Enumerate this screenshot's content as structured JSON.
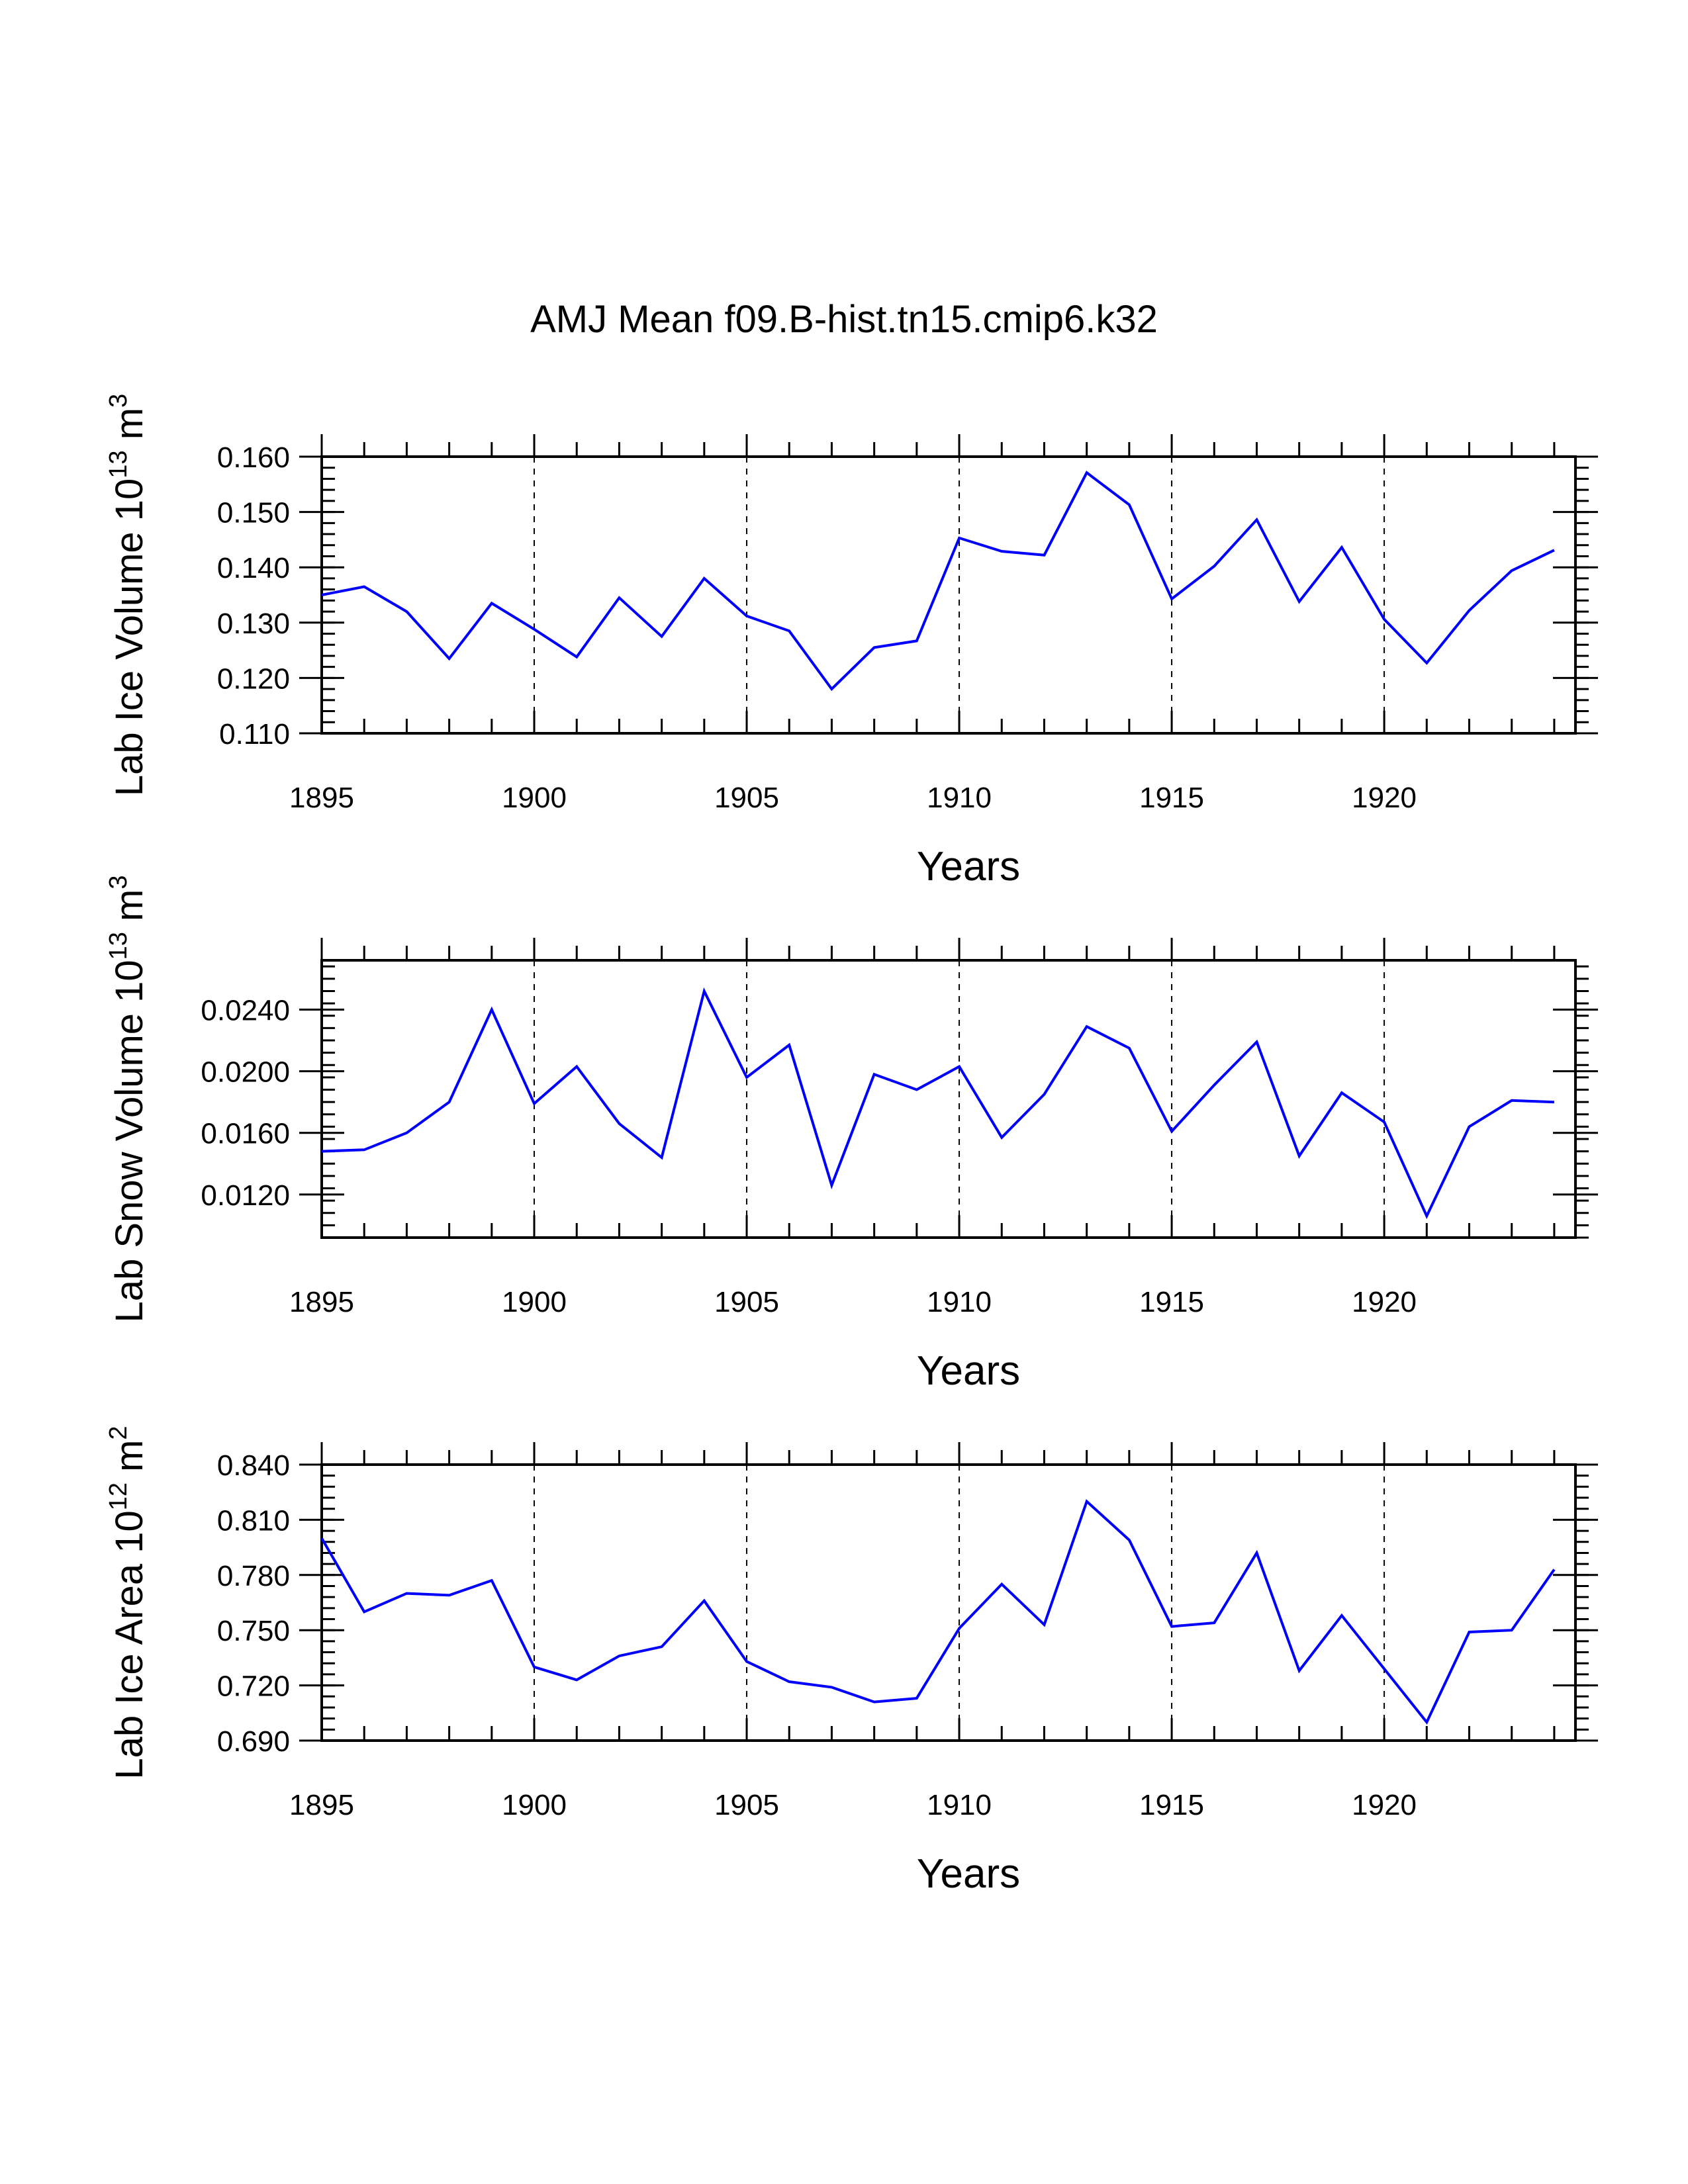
{
  "title": "AMJ Mean f09.B-hist.tn15.cmip6.k32",
  "line_color": "#0000ff",
  "chart_data": [
    {
      "type": "line",
      "xlabel": "Years",
      "ylabel": {
        "text": "Lab Ice Volume 10",
        "sup": "13",
        "unit": " m",
        "unit_sup": "3"
      },
      "x": [
        1895,
        1896,
        1897,
        1898,
        1899,
        1900,
        1901,
        1902,
        1903,
        1904,
        1905,
        1906,
        1907,
        1908,
        1909,
        1910,
        1911,
        1912,
        1913,
        1914,
        1915,
        1916,
        1917,
        1918,
        1919,
        1920,
        1921,
        1922,
        1923,
        1924
      ],
      "values": [
        0.135,
        0.1365,
        0.132,
        0.1235,
        0.1335,
        0.1288,
        0.1238,
        0.1345,
        0.1275,
        0.138,
        0.1312,
        0.1285,
        0.118,
        0.1255,
        0.1267,
        0.1453,
        0.1429,
        0.1422,
        0.1571,
        0.1513,
        0.1343,
        0.1402,
        0.1486,
        0.1338,
        0.1436,
        0.1306,
        0.1227,
        0.1322,
        0.1394,
        0.1431
      ],
      "xlim": [
        1895,
        1924.5
      ],
      "ylim": [
        0.11,
        0.16
      ],
      "xticks": [
        "1895",
        "1900",
        "1905",
        "1910",
        "1915",
        "1920"
      ],
      "yticks": [
        "0.110",
        "0.120",
        "0.130",
        "0.140",
        "0.150",
        "0.160"
      ],
      "ytick_values": [
        0.11,
        0.12,
        0.13,
        0.14,
        0.15,
        0.16
      ],
      "yminor_step": 0.002
    },
    {
      "type": "line",
      "xlabel": "Years",
      "ylabel": {
        "text": "Lab Snow Volume 10",
        "sup": "13",
        "unit": " m",
        "unit_sup": "3"
      },
      "x": [
        1895,
        1896,
        1897,
        1898,
        1899,
        1900,
        1901,
        1902,
        1903,
        1904,
        1905,
        1906,
        1907,
        1908,
        1909,
        1910,
        1911,
        1912,
        1913,
        1914,
        1915,
        1916,
        1917,
        1918,
        1919,
        1920,
        1921,
        1922,
        1923,
        1924
      ],
      "values": [
        0.0148,
        0.0149,
        0.016,
        0.018,
        0.024,
        0.0179,
        0.0203,
        0.0166,
        0.0144,
        0.0252,
        0.0196,
        0.0217,
        0.0126,
        0.0198,
        0.0188,
        0.0203,
        0.0157,
        0.0185,
        0.0229,
        0.0215,
        0.0161,
        0.0191,
        0.0219,
        0.0145,
        0.0186,
        0.0167,
        0.0106,
        0.0164,
        0.0181,
        0.018
      ],
      "xlim": [
        1895,
        1924.5
      ],
      "ylim": [
        0.0092,
        0.0272
      ],
      "xticks": [
        "1895",
        "1900",
        "1905",
        "1910",
        "1915",
        "1920"
      ],
      "yticks": [
        "0.0120",
        "0.0160",
        "0.0200",
        "0.0240"
      ],
      "ytick_values": [
        0.012,
        0.016,
        0.02,
        0.024
      ],
      "yminor_step": 0.0008
    },
    {
      "type": "line",
      "xlabel": "Years",
      "ylabel": {
        "text": "Lab Ice Area 10",
        "sup": "12",
        "unit": " m",
        "unit_sup": "2"
      },
      "x": [
        1895,
        1896,
        1897,
        1898,
        1899,
        1900,
        1901,
        1902,
        1903,
        1904,
        1905,
        1906,
        1907,
        1908,
        1909,
        1910,
        1911,
        1912,
        1913,
        1914,
        1915,
        1916,
        1917,
        1918,
        1919,
        1920,
        1921,
        1922,
        1923,
        1924
      ],
      "values": [
        0.8,
        0.76,
        0.77,
        0.769,
        0.777,
        0.73,
        0.723,
        0.736,
        0.741,
        0.766,
        0.733,
        0.722,
        0.719,
        0.711,
        0.713,
        0.751,
        0.775,
        0.753,
        0.82,
        0.799,
        0.752,
        0.754,
        0.792,
        0.728,
        0.758,
        0.729,
        0.7,
        0.749,
        0.75,
        0.783
      ],
      "xlim": [
        1895,
        1924.5
      ],
      "ylim": [
        0.69,
        0.84
      ],
      "xticks": [
        "1895",
        "1900",
        "1905",
        "1910",
        "1915",
        "1920"
      ],
      "yticks": [
        "0.690",
        "0.720",
        "0.750",
        "0.780",
        "0.810",
        "0.840"
      ],
      "ytick_values": [
        0.69,
        0.72,
        0.75,
        0.78,
        0.81,
        0.84
      ],
      "yminor_step": 0.006
    }
  ]
}
